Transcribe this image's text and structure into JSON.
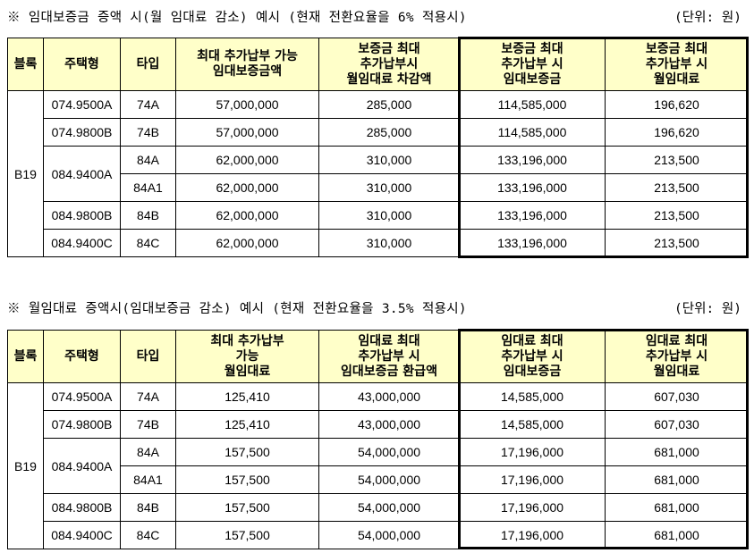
{
  "section1": {
    "caption": "※ 임대보증금 증액 시(월 임대료 감소) 예시 (현재 전환요율을 6% 적용시)",
    "unit": "(단위: 원)",
    "headers": [
      [
        "블록"
      ],
      [
        "주택형"
      ],
      [
        "타입"
      ],
      [
        "최대 추가납부 가능",
        "임대보증금액"
      ],
      [
        "보증금 최대",
        "추가납부시",
        "월임대료 차감액"
      ],
      [
        "보증금 최대",
        "추가납부 시",
        "임대보증금"
      ],
      [
        "보증금 최대",
        "추가납부 시",
        "월임대료"
      ]
    ],
    "block": "B19",
    "rows": [
      {
        "code": "074.9500A",
        "type": "74A",
        "c1": "57,000,000",
        "c2": "285,000",
        "c3": "114,585,000",
        "c4": "196,620"
      },
      {
        "code": "074.9800B",
        "type": "74B",
        "c1": "57,000,000",
        "c2": "285,000",
        "c3": "114,585,000",
        "c4": "196,620"
      },
      {
        "code": "084.9400A",
        "type": "84A",
        "c1": "62,000,000",
        "c2": "310,000",
        "c3": "133,196,000",
        "c4": "213,500"
      },
      {
        "code": "",
        "type": "84A1",
        "c1": "62,000,000",
        "c2": "310,000",
        "c3": "133,196,000",
        "c4": "213,500"
      },
      {
        "code": "084.9800B",
        "type": "84B",
        "c1": "62,000,000",
        "c2": "310,000",
        "c3": "133,196,000",
        "c4": "213,500"
      },
      {
        "code": "084.9400C",
        "type": "84C",
        "c1": "62,000,000",
        "c2": "310,000",
        "c3": "133,196,000",
        "c4": "213,500"
      }
    ]
  },
  "section2": {
    "caption": "※ 월임대료 증액시(임대보증금 감소) 예시 (현재 전환요율을 3.5% 적용시)",
    "unit": "(단위: 원)",
    "headers": [
      [
        "블록"
      ],
      [
        "주택형"
      ],
      [
        "타입"
      ],
      [
        "최대 추가납부",
        "가능",
        "월임대료"
      ],
      [
        "임대료 최대",
        "추가납부 시",
        "임대보증금 환급액"
      ],
      [
        "임대료 최대",
        "추가납부 시",
        "임대보증금"
      ],
      [
        "임대료 최대",
        "추가납부 시",
        "월임대료"
      ]
    ],
    "block": "B19",
    "rows": [
      {
        "code": "074.9500A",
        "type": "74A",
        "c1": "125,410",
        "c2": "43,000,000",
        "c3": "14,585,000",
        "c4": "607,030"
      },
      {
        "code": "074.9800B",
        "type": "74B",
        "c1": "125,410",
        "c2": "43,000,000",
        "c3": "14,585,000",
        "c4": "607,030"
      },
      {
        "code": "084.9400A",
        "type": "84A",
        "c1": "157,500",
        "c2": "54,000,000",
        "c3": "17,196,000",
        "c4": "681,000"
      },
      {
        "code": "",
        "type": "84A1",
        "c1": "157,500",
        "c2": "54,000,000",
        "c3": "17,196,000",
        "c4": "681,000"
      },
      {
        "code": "084.9800B",
        "type": "84B",
        "c1": "157,500",
        "c2": "54,000,000",
        "c3": "17,196,000",
        "c4": "681,000"
      },
      {
        "code": "084.9400C",
        "type": "84C",
        "c1": "157,500",
        "c2": "54,000,000",
        "c3": "17,196,000",
        "c4": "681,000"
      }
    ]
  }
}
